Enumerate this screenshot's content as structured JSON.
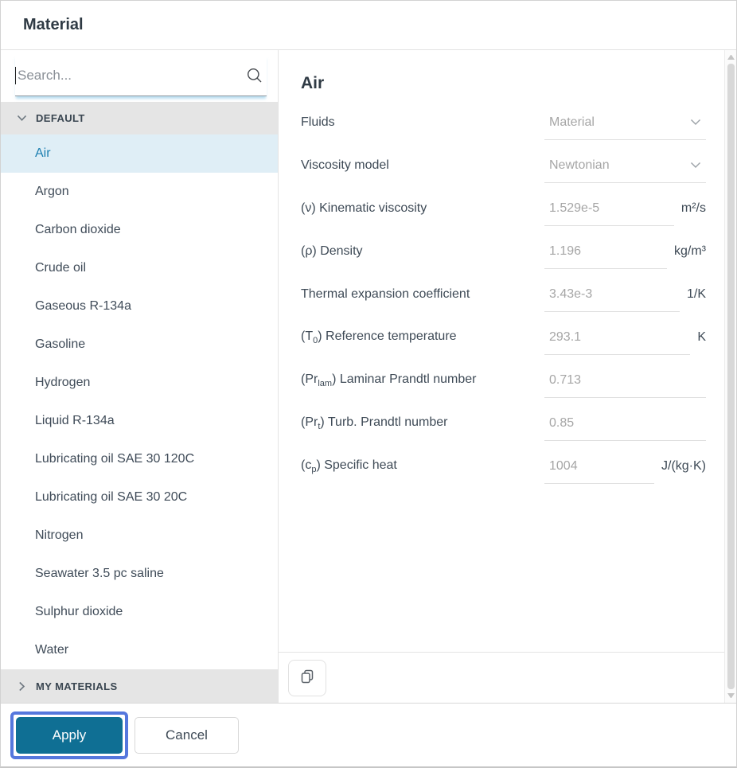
{
  "dialog": {
    "title": "Material"
  },
  "search": {
    "placeholder": "Search...",
    "icon": "search-icon"
  },
  "sidebar": {
    "sections": [
      {
        "label": "DEFAULT",
        "state": "expanded",
        "selected": "Air",
        "items": [
          "Air",
          "Argon",
          "Carbon dioxide",
          "Crude oil",
          "Gaseous R-134a",
          "Gasoline",
          "Hydrogen",
          "Liquid R-134a",
          "Lubricating oil SAE 30 120C",
          "Lubricating oil SAE 30 20C",
          "Nitrogen",
          "Seawater 3.5 pc saline",
          "Sulphur dioxide",
          "Water"
        ]
      },
      {
        "label": "MY MATERIALS",
        "state": "collapsed",
        "items": []
      }
    ]
  },
  "details": {
    "title": "Air",
    "fields": [
      {
        "label": {
          "pre": "Fluids",
          "sub": "",
          "post": ""
        },
        "type": "select",
        "value": "Material",
        "unit": ""
      },
      {
        "label": {
          "pre": "Viscosity model",
          "sub": "",
          "post": ""
        },
        "type": "select",
        "value": "Newtonian",
        "unit": ""
      },
      {
        "label": {
          "pre": "(ν) Kinematic viscosity",
          "sub": "",
          "post": ""
        },
        "type": "input",
        "value": "1.529e-5",
        "unit": "m²/s"
      },
      {
        "label": {
          "pre": "(ρ) Density",
          "sub": "",
          "post": ""
        },
        "type": "input",
        "value": "1.196",
        "unit": "kg/m³"
      },
      {
        "label": {
          "pre": "Thermal expansion coefficient",
          "sub": "",
          "post": ""
        },
        "type": "input",
        "value": "3.43e-3",
        "unit": "1/K"
      },
      {
        "label": {
          "pre": "(T",
          "sub": "0",
          "post": ") Reference temperature"
        },
        "type": "input",
        "value": "293.1",
        "unit": "K"
      },
      {
        "label": {
          "pre": "(Pr",
          "sub": "lam",
          "post": ") Laminar Prandtl number"
        },
        "type": "input",
        "value": "0.713",
        "unit": ""
      },
      {
        "label": {
          "pre": "(Pr",
          "sub": "t",
          "post": ") Turb. Prandtl number"
        },
        "type": "input",
        "value": "0.85",
        "unit": ""
      },
      {
        "label": {
          "pre": "(c",
          "sub": "p",
          "post": ") Specific heat"
        },
        "type": "input",
        "value": "1004",
        "unit": "J/(kg·K)"
      }
    ]
  },
  "footer": {
    "apply_label": "Apply",
    "cancel_label": "Cancel"
  },
  "colors": {
    "accent": "#0f6f94",
    "focus_ring": "#5577dd",
    "selected_item_bg": "#dfeef6",
    "selected_item_text": "#1b7eb0",
    "section_header_bg": "#e5e5e5",
    "disabled_value": "#a6a6a6",
    "search_glow": "#82c3e4"
  }
}
